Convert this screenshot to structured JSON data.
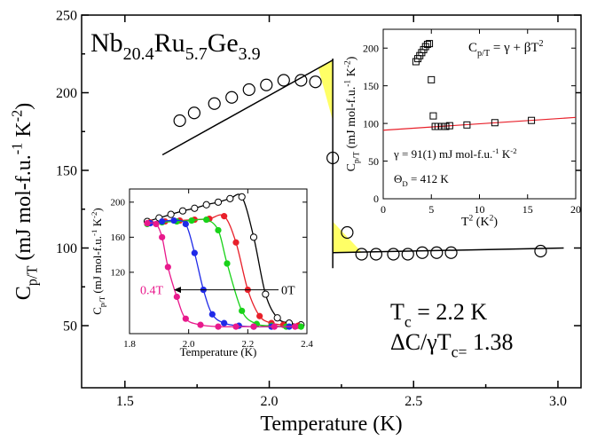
{
  "chart_data": [
    {
      "type": "scatter",
      "xlabel": "Temperature (K)",
      "ylabel": "C_p/T (mJ mol-f.u.^-1 K^-2)",
      "xlim": [
        1.35,
        3.08
      ],
      "ylim": [
        10,
        250
      ],
      "xticks": [
        1.5,
        2.0,
        2.5,
        3.0
      ],
      "xtick_labels": [
        "1.5",
        "2.0",
        "2.5",
        "3.0"
      ],
      "yticks": [
        50,
        100,
        150,
        200,
        250
      ],
      "ytick_labels": [
        "50",
        "100",
        "150",
        "200",
        "250"
      ],
      "compound": {
        "base": [
          "Nb",
          "Ru",
          "Ge"
        ],
        "subscripts": [
          "20.4",
          "5.7",
          "3.9"
        ]
      },
      "tc_text": "T_c = 2.2 K",
      "jump_text": "ΔC/γT_c= 1.38",
      "grid": false,
      "series": [
        {
          "marker": "open-circle",
          "x": [
            1.69,
            1.74,
            1.81,
            1.87,
            1.93,
            1.99,
            2.05,
            2.11,
            2.16,
            2.22,
            2.27,
            2.32,
            2.37,
            2.43,
            2.48,
            2.53,
            2.58,
            2.63,
            2.94
          ],
          "y": [
            182,
            187,
            193,
            197,
            202,
            205,
            208,
            208,
            207,
            158,
            110,
            96,
            96,
            96,
            96,
            97,
            97,
            97,
            98
          ]
        }
      ],
      "fit_lines": [
        {
          "x": [
            1.63,
            2.22
          ],
          "y": [
            160,
            221
          ]
        },
        {
          "x": [
            2.22,
            3.02
          ],
          "y": [
            97,
            100
          ]
        }
      ],
      "transition_line_x": 2.22,
      "entropy_balance_color": "#ffff66"
    },
    {
      "type": "scatter",
      "position": "upper-right inset",
      "xlabel": "T^2 (K^2)",
      "ylabel": "C_p/T (mJ mol-f.u.^-1 K^-2)",
      "xlim": [
        0,
        20
      ],
      "ylim": [
        0,
        225
      ],
      "xticks": [
        0,
        5,
        10,
        15,
        20
      ],
      "xtick_labels": [
        "0",
        "5",
        "10",
        "15",
        "20"
      ],
      "yticks": [
        0,
        50,
        100,
        150,
        200
      ],
      "ytick_labels": [
        "0",
        "50",
        "100",
        "150",
        "200"
      ],
      "formula_text": "C_p/T = γ + βT^2",
      "gamma_text": "γ = 91(1) mJ mol-f.u.^-1 K^-2",
      "theta_text": "Θ_D = 412 K",
      "series": [
        {
          "marker": "open-square",
          "x": [
            3.4,
            3.6,
            3.8,
            4.0,
            4.2,
            4.4,
            4.6,
            4.8,
            5.0,
            5.2,
            5.4,
            5.7,
            6.1,
            6.5,
            6.9,
            8.7,
            11.6,
            15.4
          ],
          "y": [
            182,
            186,
            190,
            194,
            198,
            202,
            205,
            206,
            158,
            110,
            96,
            96,
            96,
            96,
            97,
            98,
            101,
            104
          ]
        }
      ],
      "fit_line": {
        "x": [
          0,
          20
        ],
        "y": [
          91,
          108
        ],
        "color": "#e8202a"
      }
    },
    {
      "type": "line",
      "position": "lower-left inset",
      "xlabel": "Temperature (K)",
      "ylabel": "C_p/T (mJ mol-f.u.^-1 K^-2)",
      "xlim": [
        1.8,
        2.4
      ],
      "ylim": [
        50,
        215
      ],
      "xticks": [
        1.8,
        2.0,
        2.2,
        2.4
      ],
      "xtick_labels": [
        "1.8",
        "2.0",
        "2.2",
        "2.4"
      ],
      "yticks": [
        120,
        160,
        200
      ],
      "ytick_labels": [
        "120",
        "160",
        "200"
      ],
      "field_low": "0.4T",
      "field_high": "0T",
      "series": [
        {
          "color": "#000000",
          "marker": "open",
          "x": [
            1.86,
            1.9,
            1.94,
            1.98,
            2.02,
            2.06,
            2.1,
            2.14,
            2.18,
            2.22,
            2.26,
            2.3,
            2.34,
            2.38
          ],
          "y": [
            178,
            182,
            186,
            190,
            193,
            197,
            200,
            204,
            206,
            160,
            95,
            68,
            62,
            60
          ]
        },
        {
          "color": "#e8202a",
          "marker": "filled",
          "x": [
            1.87,
            1.92,
            1.97,
            2.02,
            2.07,
            2.12,
            2.16,
            2.2,
            2.24,
            2.28,
            2.32,
            2.37
          ],
          "y": [
            177,
            178,
            179,
            180,
            181,
            184,
            154,
            100,
            70,
            62,
            60,
            59
          ]
        },
        {
          "color": "#19d219",
          "marker": "filled",
          "x": [
            1.86,
            1.91,
            1.96,
            2.01,
            2.06,
            2.1,
            2.13,
            2.18,
            2.23,
            2.28,
            2.33,
            2.38
          ],
          "y": [
            175,
            177,
            178,
            179,
            180,
            168,
            130,
            76,
            61,
            59,
            58,
            58
          ]
        },
        {
          "color": "#1f2ae8",
          "marker": "filled",
          "x": [
            1.87,
            1.91,
            1.95,
            1.99,
            2.02,
            2.05,
            2.08,
            2.12,
            2.17,
            2.22,
            2.28,
            2.34
          ],
          "y": [
            176,
            178,
            179,
            175,
            142,
            100,
            72,
            62,
            59,
            58,
            58,
            58
          ]
        },
        {
          "color": "#e8198c",
          "marker": "filled",
          "x": [
            1.86,
            1.89,
            1.91,
            1.93,
            1.96,
            1.99,
            2.04,
            2.1,
            2.16,
            2.22,
            2.29,
            2.36
          ],
          "y": [
            176,
            175,
            160,
            126,
            92,
            67,
            60,
            58,
            58,
            58,
            58,
            58
          ]
        }
      ]
    }
  ]
}
